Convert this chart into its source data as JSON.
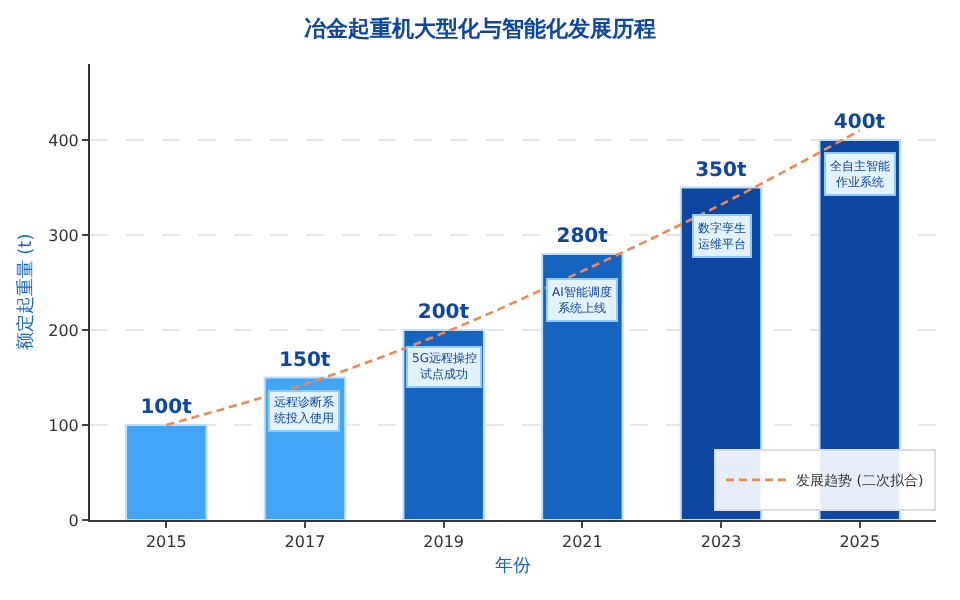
{
  "chart_data": {
    "type": "bar",
    "title": "冶金起重机大型化与智能化发展历程",
    "xlabel": "年份",
    "ylabel": "额定起重量 (t)",
    "categories": [
      "2015",
      "2017",
      "2019",
      "2021",
      "2023",
      "2025"
    ],
    "series": [
      {
        "colors": [
          "#42a5f5",
          "#42a5f5",
          "#1565c0",
          "#1565c0",
          "#0d47a1",
          "#0d47a1"
        ],
        "values": [
          100,
          150,
          200,
          280,
          350,
          400
        ],
        "value_labels": [
          "100t",
          "150t",
          "200t",
          "280t",
          "350t",
          "400t"
        ]
      },
      {
        "type": "line",
        "name": "发展趋势 (二次拟合)",
        "color": "#f0884f",
        "line_style": "dashed",
        "values": [
          100,
          143,
          197,
          262,
          332,
          410
        ]
      }
    ],
    "annotations": [
      {
        "text": "远程诊断系统投入使用",
        "x": "2017",
        "y": 115
      },
      {
        "text": "5G远程操控试点成功",
        "x": "2019",
        "y": 161
      },
      {
        "text": "AI智能调度系统上线",
        "x": "2021",
        "y": 232
      },
      {
        "text": "数字孪生运维平台",
        "x": "2023",
        "y": 300
      },
      {
        "text": "全自主智能作业系统",
        "x": "2025",
        "y": 365
      }
    ],
    "ylim": [
      0,
      480
    ],
    "yticks": [
      0,
      100,
      200,
      300,
      400
    ],
    "grid": "y",
    "legend": "bottom right",
    "marker": "none"
  }
}
